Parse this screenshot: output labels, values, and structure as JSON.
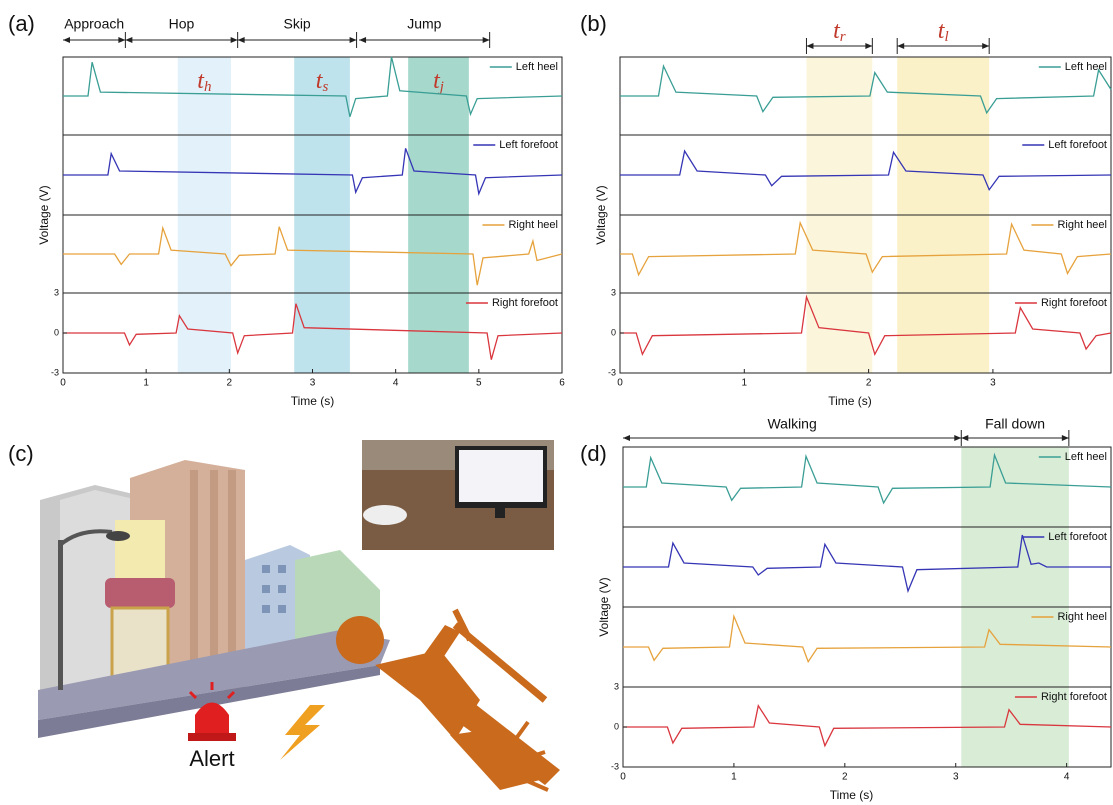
{
  "chart_data": [
    {
      "type": "line",
      "panel_label": "(a)",
      "xlabel": "Time (s)",
      "ylabel": "Voltage (V)",
      "xlim": [
        0,
        6
      ],
      "xticks": [
        0,
        1,
        2,
        3,
        4,
        5,
        6
      ],
      "ylim": [
        -3,
        3
      ],
      "yticks": [
        -3,
        0,
        3
      ],
      "legend": "upper right",
      "phases": [
        {
          "label": "Approach",
          "range": [
            0,
            0.75
          ]
        },
        {
          "label": "Hop",
          "range": [
            0.75,
            2.1
          ]
        },
        {
          "label": "Skip",
          "range": [
            2.1,
            3.53
          ]
        },
        {
          "label": "Jump",
          "range": [
            3.56,
            5.13
          ]
        }
      ],
      "regions": [
        {
          "label": "t",
          "sub": "h",
          "range": [
            1.38,
            2.02
          ],
          "color": "#e3f2fa"
        },
        {
          "label": "t",
          "sub": "s",
          "range": [
            2.78,
            3.45
          ],
          "color": "#bfe3ec"
        },
        {
          "label": "t",
          "sub": "j",
          "range": [
            4.15,
            4.88
          ],
          "color": "#a6d9cc"
        }
      ],
      "series": [
        {
          "name": "Left heel",
          "color": "#3a9e95",
          "x": [
            0,
            0.3,
            0.35,
            0.45,
            3.4,
            3.45,
            3.52,
            3.9,
            3.95,
            4.05,
            4.85,
            4.9,
            4.98,
            6
          ],
          "values": [
            0,
            0,
            2.6,
            0.3,
            0,
            -1.6,
            -0.2,
            0,
            3.0,
            0.4,
            0,
            -1.4,
            -0.2,
            0
          ]
        },
        {
          "name": "Left forefoot",
          "color": "#3535b5",
          "x": [
            0,
            0.54,
            0.58,
            0.68,
            3.48,
            3.52,
            3.6,
            4.08,
            4.12,
            4.22,
            4.96,
            5.0,
            5.08,
            6
          ],
          "values": [
            0,
            0,
            1.6,
            0.3,
            0,
            -1.3,
            -0.2,
            0,
            2.0,
            0.3,
            0,
            -1.4,
            -0.2,
            0
          ]
        },
        {
          "name": "Right heel",
          "color": "#e6a23c",
          "x": [
            0,
            0.62,
            0.7,
            0.8,
            1.15,
            1.2,
            1.3,
            1.95,
            2.02,
            2.12,
            2.55,
            2.6,
            2.7,
            4.93,
            4.98,
            5.05,
            5.6,
            5.65,
            5.7,
            6
          ],
          "values": [
            0,
            0,
            -0.8,
            0,
            0,
            2.0,
            0.3,
            0,
            -0.9,
            -0.1,
            0,
            2.1,
            0.3,
            0,
            -2.4,
            -0.3,
            0,
            1.0,
            -0.5,
            0
          ]
        },
        {
          "name": "Right forefoot",
          "color": "#d9363e",
          "x": [
            0,
            0.74,
            0.8,
            0.88,
            1.36,
            1.4,
            1.5,
            2.04,
            2.1,
            2.18,
            2.76,
            2.8,
            2.9,
            5.1,
            5.15,
            5.23,
            6
          ],
          "values": [
            0,
            0,
            -0.9,
            -0.1,
            0,
            1.3,
            0.3,
            0,
            -1.5,
            -0.2,
            0,
            2.2,
            0.4,
            0,
            -2.0,
            -0.2,
            0
          ]
        }
      ]
    },
    {
      "type": "line",
      "panel_label": "(b)",
      "xlabel": "Time (s)",
      "ylabel": "Voltage (V)",
      "xlim": [
        0,
        3.95
      ],
      "xticks": [
        0,
        1,
        2,
        3
      ],
      "ylim": [
        -3,
        3
      ],
      "yticks": [
        -3,
        0,
        3
      ],
      "legend": "upper right",
      "phases": [],
      "regions": [
        {
          "label": "t",
          "sub": "r",
          "range": [
            1.5,
            2.03
          ],
          "color": "#fbf5dc"
        },
        {
          "label": "t",
          "sub": "l",
          "range": [
            2.23,
            2.97
          ],
          "color": "#fbf1c8"
        }
      ],
      "series": [
        {
          "name": "Left heel",
          "color": "#3a9e95",
          "x": [
            0,
            0.31,
            0.35,
            0.45,
            1.1,
            1.15,
            1.23,
            2.01,
            2.05,
            2.15,
            2.9,
            2.95,
            3.03,
            3.81,
            3.85,
            3.95
          ],
          "values": [
            0,
            0,
            2.3,
            0.3,
            0,
            -1.2,
            -0.1,
            0,
            1.8,
            0.3,
            0,
            -1.3,
            -0.2,
            0,
            2.0,
            0.5
          ]
        },
        {
          "name": "Left forefoot",
          "color": "#3535b5",
          "x": [
            0,
            0.48,
            0.52,
            0.62,
            1.17,
            1.22,
            1.3,
            2.16,
            2.2,
            2.3,
            2.92,
            2.97,
            3.05,
            3.95
          ],
          "values": [
            0,
            0,
            1.8,
            0.3,
            0,
            -0.8,
            -0.1,
            0,
            1.7,
            0.3,
            0,
            -1.1,
            -0.1,
            0
          ]
        },
        {
          "name": "Right heel",
          "color": "#e6a23c",
          "x": [
            0,
            0.1,
            0.15,
            0.23,
            1.41,
            1.45,
            1.55,
            1.98,
            2.03,
            2.11,
            3.11,
            3.15,
            3.25,
            3.55,
            3.6,
            3.68,
            3.95
          ],
          "values": [
            0,
            0,
            -1.6,
            -0.2,
            0,
            2.4,
            0.3,
            0,
            -1.4,
            -0.2,
            0,
            2.3,
            0.3,
            0,
            -1.5,
            -0.2,
            0
          ]
        },
        {
          "name": "Right forefoot",
          "color": "#d9363e",
          "x": [
            0,
            0.13,
            0.18,
            0.26,
            1.46,
            1.5,
            1.6,
            2.0,
            2.05,
            2.13,
            3.18,
            3.22,
            3.32,
            3.7,
            3.75,
            3.83,
            3.95
          ],
          "values": [
            0,
            0,
            -1.6,
            -0.2,
            0,
            2.7,
            0.4,
            0,
            -1.6,
            -0.2,
            0,
            1.9,
            0.3,
            0,
            -1.2,
            -0.2,
            0
          ]
        }
      ]
    },
    {
      "type": "line",
      "panel_label": "(d)",
      "xlabel": "Time (s)",
      "ylabel": "Voltage (V)",
      "xlim": [
        0,
        4.4
      ],
      "xticks": [
        0,
        1,
        2,
        3,
        4
      ],
      "ylim": [
        -3,
        3
      ],
      "yticks": [
        -3,
        0,
        3
      ],
      "legend": "upper right",
      "phases": [
        {
          "label": "Walking",
          "range": [
            0,
            3.05
          ]
        },
        {
          "label": "Fall down",
          "range": [
            3.05,
            4.02
          ]
        }
      ],
      "regions": [
        {
          "range": [
            3.05,
            4.02
          ],
          "color": "#d8ecd6"
        }
      ],
      "series": [
        {
          "name": "Left heel",
          "color": "#3a9e95",
          "x": [
            0,
            0.21,
            0.25,
            0.35,
            0.93,
            0.98,
            1.06,
            1.61,
            1.65,
            1.75,
            2.3,
            2.35,
            2.43,
            3.31,
            3.35,
            3.45,
            4.4
          ],
          "values": [
            0,
            0,
            2.2,
            0.3,
            0,
            -1.0,
            -0.1,
            0,
            2.3,
            0.3,
            0,
            -1.2,
            -0.1,
            0,
            2.4,
            0.3,
            0
          ]
        },
        {
          "name": "Left forefoot",
          "color": "#3535b5",
          "x": [
            0,
            0.41,
            0.45,
            0.55,
            1.17,
            1.22,
            1.3,
            1.78,
            1.82,
            1.92,
            2.52,
            2.57,
            2.65,
            3.56,
            3.6,
            3.68,
            3.75,
            3.82,
            4.4
          ],
          "values": [
            0,
            0,
            1.8,
            0.3,
            0,
            -0.6,
            -0.1,
            0,
            1.7,
            0.3,
            0,
            -1.8,
            -0.2,
            0,
            2.4,
            0.2,
            0.3,
            0,
            0
          ]
        },
        {
          "name": "Right heel",
          "color": "#e6a23c",
          "x": [
            0,
            0.23,
            0.28,
            0.36,
            0.96,
            1.0,
            1.1,
            1.62,
            1.67,
            1.75,
            3.26,
            3.3,
            3.4,
            4.4
          ],
          "values": [
            0,
            0,
            -1.0,
            -0.1,
            0,
            2.3,
            0.3,
            0,
            -1.1,
            -0.1,
            0,
            1.3,
            0.2,
            0
          ]
        },
        {
          "name": "Right forefoot",
          "color": "#d9363e",
          "x": [
            0,
            0.4,
            0.45,
            0.53,
            1.18,
            1.22,
            1.32,
            1.77,
            1.82,
            1.9,
            3.44,
            3.48,
            3.58,
            4.4
          ],
          "values": [
            0,
            0,
            -1.2,
            -0.1,
            0,
            1.6,
            0.3,
            0,
            -1.4,
            -0.1,
            0,
            1.3,
            0.2,
            0
          ]
        }
      ]
    }
  ],
  "illustration": {
    "panel_label": "(c)",
    "alert": "Alert"
  }
}
